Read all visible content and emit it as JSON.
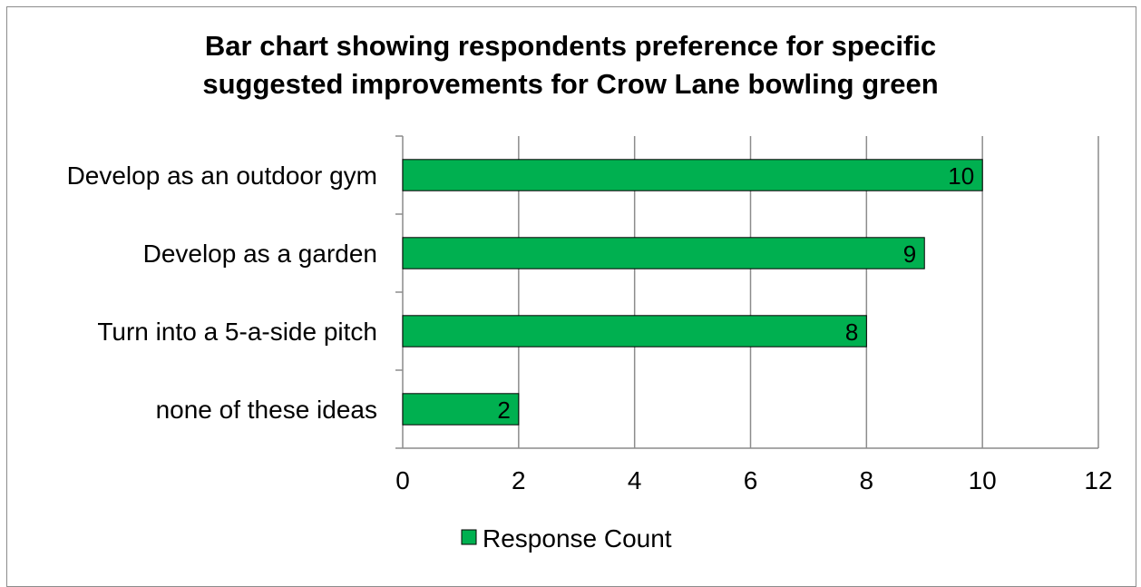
{
  "chart_data": {
    "type": "bar",
    "orientation": "horizontal",
    "title_lines": [
      "Bar chart showing respondents preference for specific",
      "suggested improvements for Crow Lane bowling green"
    ],
    "categories": [
      "Develop as an outdoor gym",
      "Develop as a garden",
      "Turn into a 5-a-side pitch",
      "none of these ideas"
    ],
    "series": [
      {
        "name": "Response Count",
        "values": [
          10,
          9,
          8,
          2
        ]
      }
    ],
    "xlim": [
      0,
      12
    ],
    "x_ticks": [
      0,
      2,
      4,
      6,
      8,
      10,
      12
    ],
    "grid": "vertical",
    "legend_position": "bottom",
    "colors": {
      "bar_fill": "#00B050",
      "bar_stroke": "#000000",
      "grid": "#8c8c8c",
      "axis": "#8c8c8c"
    }
  }
}
